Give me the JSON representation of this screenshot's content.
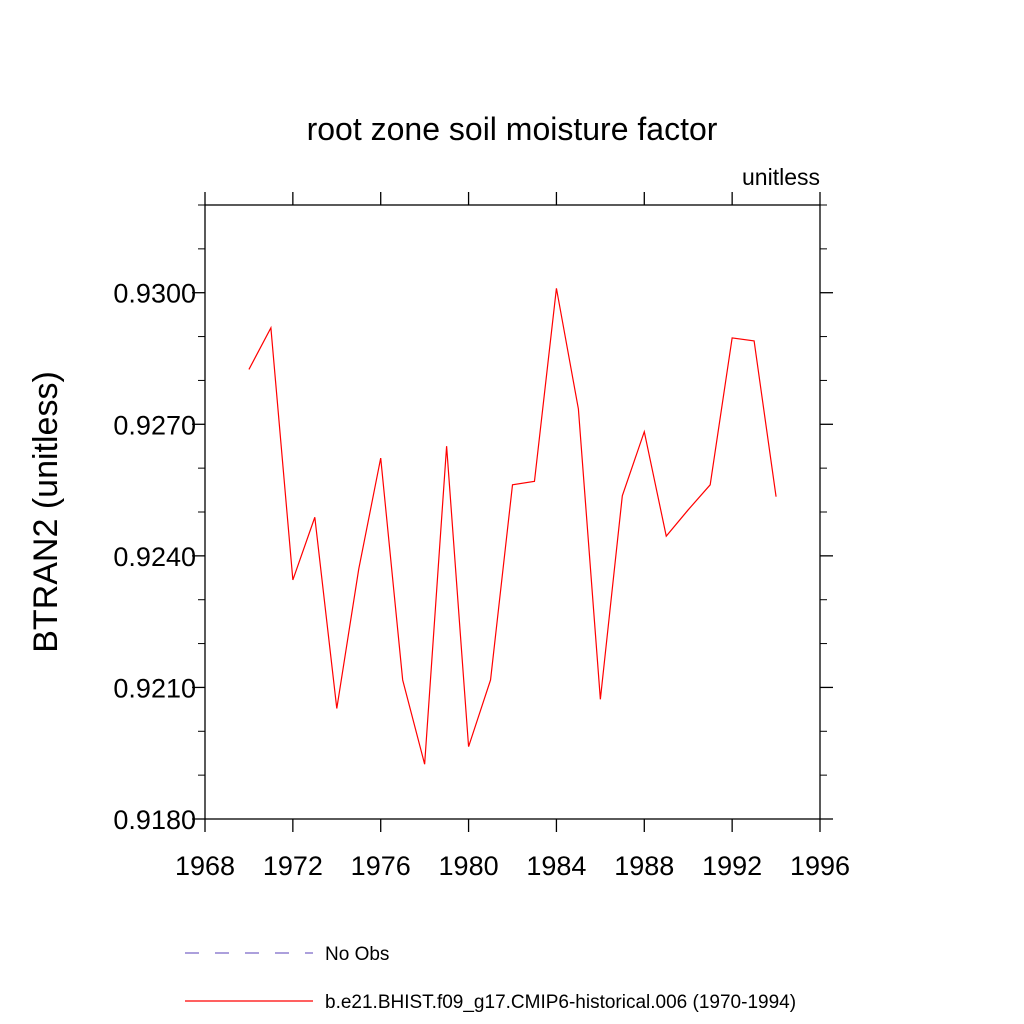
{
  "chart_data": {
    "type": "line",
    "title": "root zone soil moisture factor",
    "units_label": "unitless",
    "ylabel": "BTRAN2  (unitless)",
    "xlabel": "",
    "xlim": [
      1968,
      1996
    ],
    "ylim": [
      0.918,
      0.932
    ],
    "x_ticks": [
      "1968",
      "1972",
      "1976",
      "1980",
      "1984",
      "1988",
      "1992",
      "1996"
    ],
    "y_ticks": [
      "0.9180",
      "0.9210",
      "0.9240",
      "0.9270",
      "0.9300"
    ],
    "grid": false,
    "legend_position": "bottom",
    "series": [
      {
        "name": "No Obs",
        "color": "#7b68c8",
        "dash": true,
        "x": [],
        "values": []
      },
      {
        "name": "b.e21.BHIST.f09_g17.CMIP6-historical.006 (1970-1994)",
        "color": "#ff0000",
        "dash": false,
        "x": [
          1970,
          1971,
          1972,
          1973,
          1974,
          1975,
          1976,
          1977,
          1978,
          1979,
          1980,
          1981,
          1982,
          1983,
          1984,
          1985,
          1986,
          1987,
          1988,
          1989,
          1990,
          1991,
          1992,
          1993,
          1994
        ],
        "values": [
          0.92825,
          0.9292,
          0.92345,
          0.92488,
          0.92052,
          0.9237,
          0.92623,
          0.92117,
          0.91925,
          0.9265,
          0.91965,
          0.92117,
          0.92562,
          0.9257,
          0.9301,
          0.92735,
          0.92073,
          0.92537,
          0.92683,
          0.92445,
          0.92505,
          0.92562,
          0.92897,
          0.9289,
          0.92535
        ]
      }
    ]
  }
}
